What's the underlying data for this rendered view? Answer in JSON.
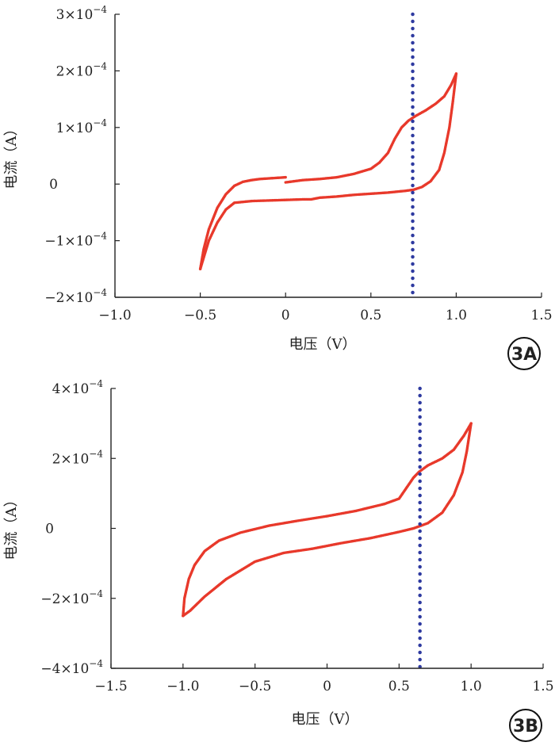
{
  "chart_data": [
    {
      "id": "3A",
      "type": "scatter",
      "panel_label": "3A",
      "xlabel": "电压（V）",
      "ylabel": "电流（A）",
      "xlim": [
        -1.0,
        1.5
      ],
      "ylim": [
        -0.0002,
        0.0003
      ],
      "x_ticks": [
        -1.0,
        -0.5,
        0,
        0.5,
        1.0,
        1.5
      ],
      "x_tick_labels": [
        "−1.0",
        "−0.5",
        "0",
        "0.5",
        "1.0",
        "1.5"
      ],
      "y_ticks": [
        -0.0002,
        -0.0001,
        0,
        0.0001,
        0.0002,
        0.0003
      ],
      "y_tick_labels": [
        {
          "mant": "−2×10",
          "exp": "−4"
        },
        {
          "mant": "−1×10",
          "exp": "−4"
        },
        {
          "mant": "0",
          "exp": ""
        },
        {
          "mant": "1×10",
          "exp": "−4"
        },
        {
          "mant": "2×10",
          "exp": "−4"
        },
        {
          "mant": "3×10",
          "exp": "−4"
        }
      ],
      "grid": false,
      "vertical_line_x": 0.745,
      "colors": {
        "curve": "#e8392b",
        "vline": "#2e3aa0",
        "axis": "#222222"
      },
      "series": [
        {
          "points": [
            [
              0.0,
              1.2e-05
            ],
            [
              -0.05,
              1.1e-05
            ],
            [
              -0.1,
              1e-05
            ],
            [
              -0.15,
              9e-06
            ],
            [
              -0.2,
              7e-06
            ],
            [
              -0.25,
              4e-06
            ],
            [
              -0.3,
              -3e-06
            ],
            [
              -0.35,
              -1.8e-05
            ],
            [
              -0.4,
              -4.2e-05
            ],
            [
              -0.45,
              -8e-05
            ],
            [
              -0.48,
              -0.000115
            ],
            [
              -0.5,
              -0.00015
            ]
          ]
        },
        {
          "points": [
            [
              -0.5,
              -0.00015
            ],
            [
              -0.48,
              -0.00013
            ],
            [
              -0.45,
              -0.0001
            ],
            [
              -0.4,
              -6.8e-05
            ],
            [
              -0.35,
              -4.5e-05
            ],
            [
              -0.3,
              -3.3e-05
            ],
            [
              -0.2,
              -3e-05
            ],
            [
              -0.1,
              -2.9e-05
            ],
            [
              0.0,
              -2.8e-05
            ],
            [
              0.1,
              -2.7e-05
            ],
            [
              0.15,
              -2.7e-05
            ],
            [
              0.2,
              -2.4e-05
            ],
            [
              0.3,
              -2.2e-05
            ],
            [
              0.4,
              -1.9e-05
            ],
            [
              0.5,
              -1.7e-05
            ],
            [
              0.6,
              -1.5e-05
            ],
            [
              0.7,
              -1.2e-05
            ],
            [
              0.75,
              -1e-05
            ],
            [
              0.8,
              -5e-06
            ],
            [
              0.85,
              5e-06
            ],
            [
              0.9,
              2.5e-05
            ],
            [
              0.93,
              5.5e-05
            ],
            [
              0.96,
              0.0001
            ],
            [
              0.98,
              0.000145
            ],
            [
              1.0,
              0.000195
            ]
          ]
        },
        {
          "points": [
            [
              1.0,
              0.000195
            ],
            [
              0.97,
              0.000175
            ],
            [
              0.93,
              0.000155
            ],
            [
              0.88,
              0.000142
            ],
            [
              0.82,
              0.00013
            ],
            [
              0.76,
              0.00012
            ],
            [
              0.72,
              0.000112
            ],
            [
              0.68,
              0.0001
            ],
            [
              0.64,
              8e-05
            ],
            [
              0.6,
              5.5e-05
            ],
            [
              0.55,
              3.8e-05
            ],
            [
              0.5,
              2.7e-05
            ],
            [
              0.4,
              1.8e-05
            ],
            [
              0.3,
              1.2e-05
            ],
            [
              0.2,
              9e-06
            ],
            [
              0.1,
              7e-06
            ],
            [
              0.0,
              3e-06
            ]
          ]
        }
      ]
    },
    {
      "id": "3B",
      "type": "scatter",
      "panel_label": "3B",
      "xlabel": "电压（V）",
      "ylabel": "电流（A）",
      "xlim": [
        -1.5,
        1.5
      ],
      "ylim": [
        -0.0004,
        0.0004
      ],
      "x_ticks": [
        -1.5,
        -1.0,
        -0.5,
        0,
        0.5,
        1.0,
        1.5
      ],
      "x_tick_labels": [
        "−1.5",
        "−1.0",
        "−0.5",
        "0",
        "0.5",
        "1.0",
        "1.5"
      ],
      "y_ticks": [
        -0.0004,
        -0.0002,
        0,
        0.0002,
        0.0004
      ],
      "y_tick_labels": [
        {
          "mant": "−4×10",
          "exp": "−4"
        },
        {
          "mant": "−2×10",
          "exp": "−4"
        },
        {
          "mant": "0",
          "exp": ""
        },
        {
          "mant": "2×10",
          "exp": "−4"
        },
        {
          "mant": "4×10",
          "exp": "−4"
        }
      ],
      "grid": false,
      "vertical_line_x": 0.645,
      "colors": {
        "curve": "#e8392b",
        "vline": "#2e3aa0",
        "axis": "#222222"
      },
      "series": [
        {
          "points": [
            [
              0.0,
              3.5e-05
            ],
            [
              -0.2,
              2.2e-05
            ],
            [
              -0.4,
              8e-06
            ],
            [
              -0.6,
              -1.2e-05
            ],
            [
              -0.75,
              -3.5e-05
            ],
            [
              -0.85,
              -6.5e-05
            ],
            [
              -0.92,
              -0.000105
            ],
            [
              -0.96,
              -0.000145
            ],
            [
              -0.99,
              -0.0002
            ],
            [
              -1.0,
              -0.00025
            ]
          ]
        },
        {
          "points": [
            [
              -1.0,
              -0.00025
            ],
            [
              -0.95,
              -0.000235
            ],
            [
              -0.85,
              -0.000195
            ],
            [
              -0.7,
              -0.000145
            ],
            [
              -0.5,
              -9.5e-05
            ],
            [
              -0.3,
              -7e-05
            ],
            [
              -0.1,
              -5.8e-05
            ],
            [
              0.1,
              -4.2e-05
            ],
            [
              0.3,
              -2.8e-05
            ],
            [
              0.5,
              -1e-05
            ],
            [
              0.6,
              0.0
            ],
            [
              0.7,
              1.5e-05
            ],
            [
              0.8,
              4.5e-05
            ],
            [
              0.88,
              9.5e-05
            ],
            [
              0.94,
              0.00016
            ],
            [
              0.97,
              0.00022
            ],
            [
              1.0,
              0.0003
            ]
          ]
        },
        {
          "points": [
            [
              1.0,
              0.0003
            ],
            [
              0.95,
              0.000265
            ],
            [
              0.88,
              0.000225
            ],
            [
              0.8,
              0.0002
            ],
            [
              0.7,
              0.00018
            ],
            [
              0.64,
              0.000162
            ],
            [
              0.6,
              0.000145
            ],
            [
              0.55,
              0.000115
            ],
            [
              0.5,
              8.5e-05
            ],
            [
              0.4,
              7e-05
            ],
            [
              0.2,
              5e-05
            ],
            [
              0.0,
              3.5e-05
            ]
          ]
        }
      ]
    }
  ]
}
